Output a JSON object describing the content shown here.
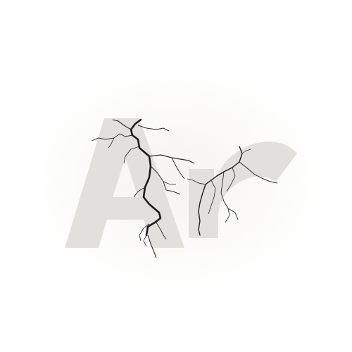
{
  "logo": {
    "mark_text": "Ar",
    "icon": "cracked-letters-logo",
    "colors": {
      "background": "#ffffff",
      "letter_fill": "#e2e0dc",
      "crack_dark": "#1c1c1c",
      "crack_light": "#3a3a3a"
    }
  }
}
